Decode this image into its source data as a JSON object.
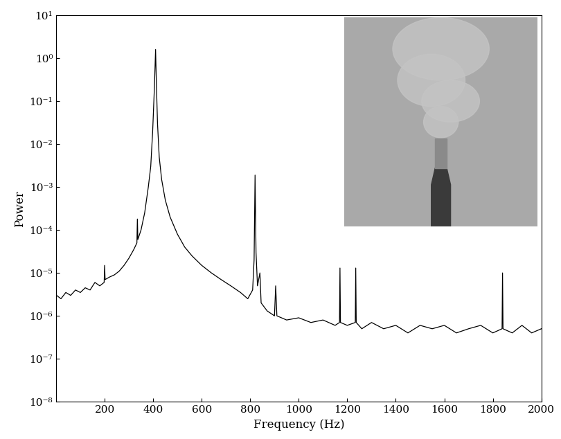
{
  "chart_data": {
    "type": "line",
    "log": "y",
    "grid": false,
    "x_label": "Frequency (Hz)",
    "y_label": "Power",
    "xlim": [
      0,
      2000
    ],
    "xticks": [
      200,
      400,
      600,
      800,
      1000,
      1200,
      1400,
      1600,
      1800,
      2000
    ],
    "ylim": [
      1e-08,
      10
    ],
    "yticks": [
      {
        "value": 1e-08,
        "label": "10⁻⁸"
      },
      {
        "value": 1e-07,
        "label": "10⁻⁷"
      },
      {
        "value": 1e-06,
        "label": "10⁻⁶"
      },
      {
        "value": 1e-05,
        "label": "10⁻⁵"
      },
      {
        "value": 0.0001,
        "label": "10⁻⁴"
      },
      {
        "value": 0.001,
        "label": "10⁻³"
      },
      {
        "value": 0.01,
        "label": "10⁻²"
      },
      {
        "value": 0.1,
        "label": "10⁻¹"
      },
      {
        "value": 1,
        "label": "10⁰"
      },
      {
        "value": 10,
        "label": "10¹"
      }
    ],
    "color": "#000000",
    "x": [
      2,
      20,
      40,
      60,
      80,
      100,
      120,
      140,
      160,
      180,
      198,
      200,
      202,
      220,
      240,
      260,
      280,
      300,
      320,
      333,
      335,
      337,
      350,
      365,
      380,
      390,
      398,
      405,
      410,
      413,
      418,
      425,
      435,
      450,
      470,
      500,
      530,
      560,
      600,
      640,
      680,
      720,
      760,
      790,
      810,
      816,
      820,
      824,
      830,
      840,
      845,
      870,
      900,
      905,
      910,
      950,
      1000,
      1050,
      1100,
      1150,
      1168,
      1170,
      1172,
      1200,
      1233,
      1235,
      1237,
      1260,
      1300,
      1350,
      1400,
      1450,
      1500,
      1550,
      1600,
      1650,
      1700,
      1750,
      1800,
      1838,
      1840,
      1842,
      1880,
      1920,
      1960,
      2000
    ],
    "values": [
      3e-06,
      2.5e-06,
      3.5e-06,
      3e-06,
      4e-06,
      3.5e-06,
      4.5e-06,
      4e-06,
      6e-06,
      5e-06,
      6e-06,
      1.5e-05,
      7e-06,
      8e-06,
      9e-06,
      1.1e-05,
      1.5e-05,
      2.2e-05,
      3.5e-05,
      5e-05,
      0.00018,
      6e-05,
      0.0001,
      0.00025,
      0.001,
      0.003,
      0.02,
      0.2,
      1.6,
      0.3,
      0.03,
      0.005,
      0.0015,
      0.0005,
      0.0002,
      8e-05,
      4e-05,
      2.5e-05,
      1.5e-05,
      1e-05,
      7e-06,
      5e-06,
      3.5e-06,
      2.5e-06,
      4e-06,
      2e-05,
      0.0019,
      3e-05,
      5e-06,
      1e-05,
      2e-06,
      1.3e-06,
      1e-06,
      5e-06,
      1e-06,
      8e-07,
      9e-07,
      7e-07,
      8e-07,
      6e-07,
      7e-07,
      1.3e-05,
      7e-07,
      6e-07,
      7e-07,
      1.3e-05,
      7e-07,
      5e-07,
      7e-07,
      5e-07,
      6e-07,
      4e-07,
      6e-07,
      5e-07,
      6e-07,
      4e-07,
      5e-07,
      6e-07,
      4e-07,
      5e-07,
      1e-05,
      5e-07,
      4e-07,
      6e-07,
      4e-07,
      5e-07
    ]
  }
}
